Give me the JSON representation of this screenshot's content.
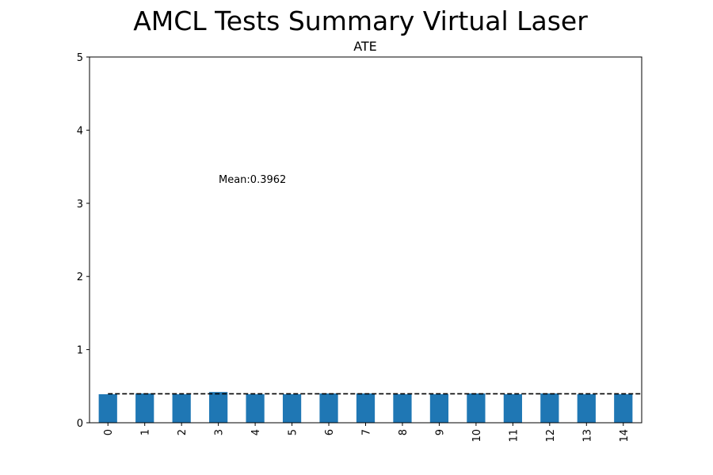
{
  "chart_data": {
    "type": "bar",
    "suptitle": "AMCL Tests Summary Virtual Laser",
    "title": "ATE",
    "xlabel": "",
    "ylabel": "",
    "categories": [
      "0",
      "1",
      "2",
      "3",
      "4",
      "5",
      "6",
      "7",
      "8",
      "9",
      "10",
      "11",
      "12",
      "13",
      "14"
    ],
    "values": [
      0.39,
      0.4,
      0.39,
      0.42,
      0.39,
      0.39,
      0.4,
      0.4,
      0.39,
      0.39,
      0.4,
      0.39,
      0.4,
      0.39,
      0.39
    ],
    "ylim": [
      0,
      5
    ],
    "yticks": [
      0,
      1,
      2,
      3,
      4,
      5
    ],
    "bar_color": "#1f77b4",
    "mean_value": 0.3962,
    "mean_label": "Mean:0.3962",
    "mean_line_style": "dashed black",
    "grid": false
  }
}
